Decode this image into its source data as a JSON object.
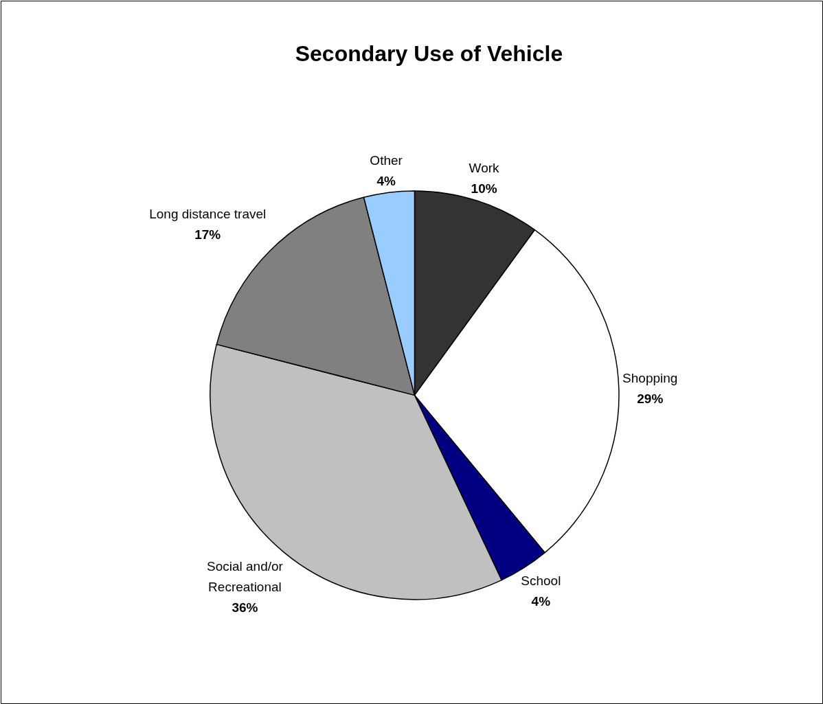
{
  "chart_data": {
    "type": "pie",
    "title": "Secondary Use of Vehicle",
    "categories": [
      "Work",
      "Shopping",
      "School",
      "Social and/or Recreational",
      "Long distance travel",
      "Other"
    ],
    "values": [
      10,
      29,
      4,
      36,
      17,
      4
    ],
    "value_labels": [
      "10%",
      "29%",
      "4%",
      "36%",
      "17%",
      "4%"
    ],
    "colors": [
      "#333333",
      "#ffffff",
      "#000080",
      "#c0c0c0",
      "#808080",
      "#99ccff"
    ]
  }
}
